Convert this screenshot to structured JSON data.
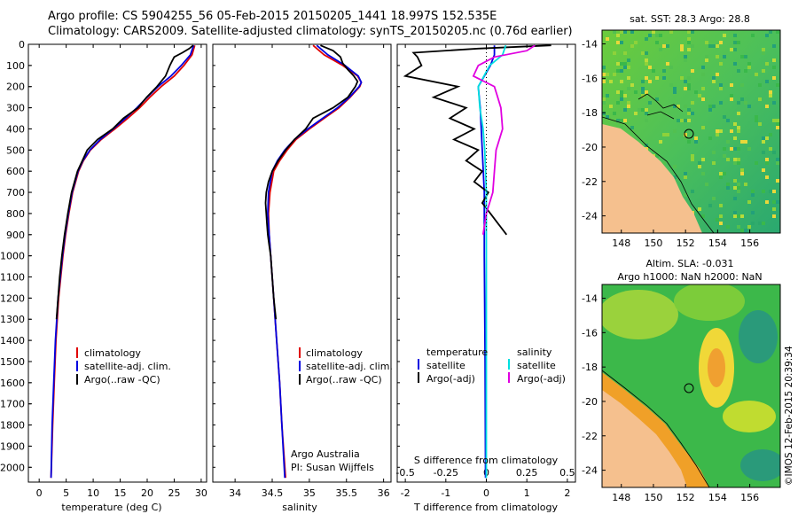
{
  "title": {
    "line1": "Argo profile: CS 5904255_56 05-Feb-2015 20150205_1441 18.997S 152.535E",
    "line2": "Climatology: CARS2009. Satellite-adjusted climatology: synTS_20150205.nc (0.76d earlier)"
  },
  "colors": {
    "climatology": "#e00000",
    "satellite": "#0000e0",
    "argo": "#000000",
    "sat_salinity": "#00e0e0",
    "argo_salinity_adj": "#e000e0"
  },
  "chart_data": [
    {
      "type": "line",
      "id": "temperature",
      "xlabel": "temperature (deg C)",
      "ylabel": "",
      "xlim": [
        -2,
        31
      ],
      "ylim": [
        2070,
        0
      ],
      "xticks": [
        "0",
        "5",
        "10",
        "15",
        "20",
        "25",
        "30"
      ],
      "yticks": [
        "0",
        "100",
        "200",
        "300",
        "400",
        "500",
        "600",
        "700",
        "800",
        "900",
        "1000",
        "1100",
        "1200",
        "1300",
        "1400",
        "1500",
        "1600",
        "1700",
        "1800",
        "1900",
        "2000"
      ],
      "legend": [
        "climatology",
        "satellite-adj. clim.",
        "Argo(..raw -QC)"
      ],
      "series": [
        {
          "name": "climatology",
          "depth": [
            5,
            50,
            100,
            150,
            200,
            250,
            300,
            350,
            400,
            450,
            500,
            550,
            600,
            700,
            800,
            900,
            1000,
            1200,
            1400,
            1600,
            1800,
            2050
          ],
          "values": [
            28.8,
            28.3,
            26.8,
            25.0,
            22.6,
            20.5,
            18.6,
            16.4,
            14.0,
            11.5,
            9.5,
            8.2,
            7.3,
            6.2,
            5.5,
            4.9,
            4.4,
            3.6,
            3.1,
            2.8,
            2.5,
            2.2
          ]
        },
        {
          "name": "satellite-adj. clim.",
          "depth": [
            5,
            50,
            100,
            150,
            200,
            250,
            300,
            350,
            400,
            450,
            500,
            550,
            600,
            700,
            800,
            900,
            1000,
            1200,
            1400,
            1600,
            1800,
            2050
          ],
          "values": [
            28.6,
            28.0,
            26.3,
            24.4,
            22.0,
            20.0,
            18.1,
            16.0,
            13.7,
            11.3,
            9.4,
            8.1,
            7.2,
            6.1,
            5.4,
            4.8,
            4.3,
            3.5,
            3.0,
            2.7,
            2.4,
            2.2
          ]
        },
        {
          "name": "Argo(..raw -QC)",
          "depth": [
            5,
            20,
            40,
            60,
            80,
            100,
            150,
            200,
            250,
            300,
            350,
            400,
            450,
            500,
            550,
            600,
            700,
            800,
            900,
            1000,
            1100,
            1200,
            1300
          ],
          "values": [
            28.5,
            27.8,
            26.5,
            25.0,
            24.6,
            24.2,
            23.4,
            21.8,
            19.9,
            18.3,
            15.6,
            13.6,
            10.8,
            8.9,
            8.0,
            7.1,
            6.0,
            5.3,
            4.7,
            4.2,
            3.8,
            3.5,
            3.2
          ]
        }
      ]
    },
    {
      "type": "line",
      "id": "salinity",
      "xlabel": "salinity",
      "xlim": [
        33.7,
        36.1
      ],
      "ylim": [
        2070,
        0
      ],
      "xticks": [
        "34",
        "34.5",
        "35",
        "35.5",
        "36"
      ],
      "legend": [
        "climatology",
        "satellite-adj. clim.",
        "Argo(..raw -QC)"
      ],
      "annotation": [
        "Argo Australia",
        "PI: Susan Wijffels"
      ],
      "series": [
        {
          "name": "climatology",
          "depth": [
            5,
            50,
            100,
            150,
            180,
            200,
            250,
            300,
            350,
            400,
            450,
            500,
            550,
            600,
            700,
            800,
            900,
            1000,
            1200,
            1400,
            1600,
            1800,
            2050
          ],
          "values": [
            35.05,
            35.2,
            35.45,
            35.65,
            35.7,
            35.68,
            35.55,
            35.4,
            35.2,
            35.0,
            34.82,
            34.7,
            34.6,
            34.52,
            34.47,
            34.45,
            34.46,
            34.48,
            34.52,
            34.56,
            34.6,
            34.63,
            34.68
          ]
        },
        {
          "name": "satellite-adj. clim.",
          "depth": [
            5,
            50,
            100,
            150,
            180,
            200,
            250,
            300,
            350,
            400,
            450,
            500,
            550,
            600,
            700,
            800,
            900,
            1000,
            1200,
            1400,
            1600,
            1800,
            2050
          ],
          "values": [
            35.1,
            35.25,
            35.48,
            35.66,
            35.7,
            35.67,
            35.54,
            35.38,
            35.18,
            34.98,
            34.8,
            34.67,
            34.57,
            34.5,
            34.45,
            34.44,
            34.46,
            34.48,
            34.52,
            34.56,
            34.6,
            34.63,
            34.67
          ]
        },
        {
          "name": "Argo(..raw -QC)",
          "depth": [
            5,
            30,
            60,
            90,
            120,
            150,
            175,
            200,
            250,
            300,
            350,
            400,
            450,
            500,
            550,
            600,
            650,
            700,
            750,
            800,
            850,
            900,
            950,
            1000,
            1100,
            1200,
            1300
          ],
          "values": [
            35.15,
            35.32,
            35.42,
            35.45,
            35.52,
            35.6,
            35.65,
            35.62,
            35.52,
            35.32,
            35.05,
            34.95,
            34.8,
            34.68,
            34.58,
            34.5,
            34.45,
            34.42,
            34.41,
            34.42,
            34.43,
            34.44,
            34.46,
            34.48,
            34.5,
            34.52,
            34.55
          ]
        }
      ]
    },
    {
      "type": "line",
      "id": "difference",
      "xlabel": "T difference from climatology",
      "xlabel_top": "S difference from climatology",
      "xlim": [
        -2.2,
        2.2
      ],
      "ylim": [
        2070,
        0
      ],
      "xticks": [
        "-2",
        "-1",
        "0",
        "1",
        "2"
      ],
      "xticks_top": [
        "-0.5",
        "-0.25",
        "0",
        "0.25",
        "0.5"
      ],
      "legend_groups": [
        {
          "header": "temperature",
          "items": [
            "satellite",
            "Argo(-adj)"
          ]
        },
        {
          "header": "salinity",
          "items": [
            "satellite",
            "Argo(-adj)"
          ]
        }
      ],
      "series": [
        {
          "name": "temperature satellite",
          "depth": [
            5,
            50,
            100,
            200,
            300,
            500,
            700,
            1000,
            1500,
            2050
          ],
          "values": [
            0.2,
            0.2,
            0.1,
            -0.2,
            -0.15,
            -0.1,
            -0.05,
            -0.05,
            -0.03,
            -0.02
          ]
        },
        {
          "name": "temperature Argo(-adj)",
          "depth": [
            5,
            20,
            40,
            60,
            100,
            150,
            200,
            250,
            300,
            350,
            400,
            450,
            500,
            550,
            600,
            650,
            700,
            750,
            800,
            850,
            900
          ],
          "values": [
            1.6,
            -0.2,
            -1.8,
            -1.7,
            -1.6,
            -2.0,
            -0.7,
            -1.3,
            -0.5,
            -0.9,
            -0.3,
            -0.8,
            -0.2,
            -0.5,
            -0.1,
            -0.3,
            0.05,
            -0.1,
            0.1,
            0.3,
            0.5
          ]
        },
        {
          "name": "salinity satellite",
          "depth": [
            5,
            50,
            100,
            200,
            300,
            400,
            500,
            700,
            1000,
            1500,
            2050
          ],
          "values": [
            0.12,
            0.1,
            0.02,
            -0.05,
            -0.04,
            -0.02,
            -0.01,
            0.0,
            0.0,
            0.0,
            0.0
          ]
        },
        {
          "name": "salinity Argo(-adj)",
          "depth": [
            5,
            30,
            60,
            100,
            150,
            200,
            250,
            300,
            400,
            500,
            600,
            700,
            800,
            900
          ],
          "values": [
            0.3,
            0.25,
            0.05,
            -0.05,
            -0.08,
            0.05,
            0.07,
            0.09,
            0.1,
            0.06,
            0.05,
            0.04,
            0.0,
            -0.02
          ]
        }
      ]
    }
  ],
  "maps": {
    "sst": {
      "title": "sat. SST: 28.3 Argo: 28.8",
      "yticks": [
        "-14",
        "-16",
        "-18",
        "-20",
        "-22",
        "-24"
      ],
      "xticks": [
        "148",
        "150",
        "152",
        "154",
        "156"
      ]
    },
    "sla": {
      "title1": "Altim. SLA: -0.031",
      "title2": "Argo h1000: NaN h2000: NaN",
      "yticks": [
        "-14",
        "-16",
        "-18",
        "-20",
        "-22",
        "-24"
      ],
      "xticks": [
        "148",
        "150",
        "152",
        "154",
        "156"
      ]
    }
  },
  "side_label": "©IMOS 12-Feb-2015 20:39:34"
}
